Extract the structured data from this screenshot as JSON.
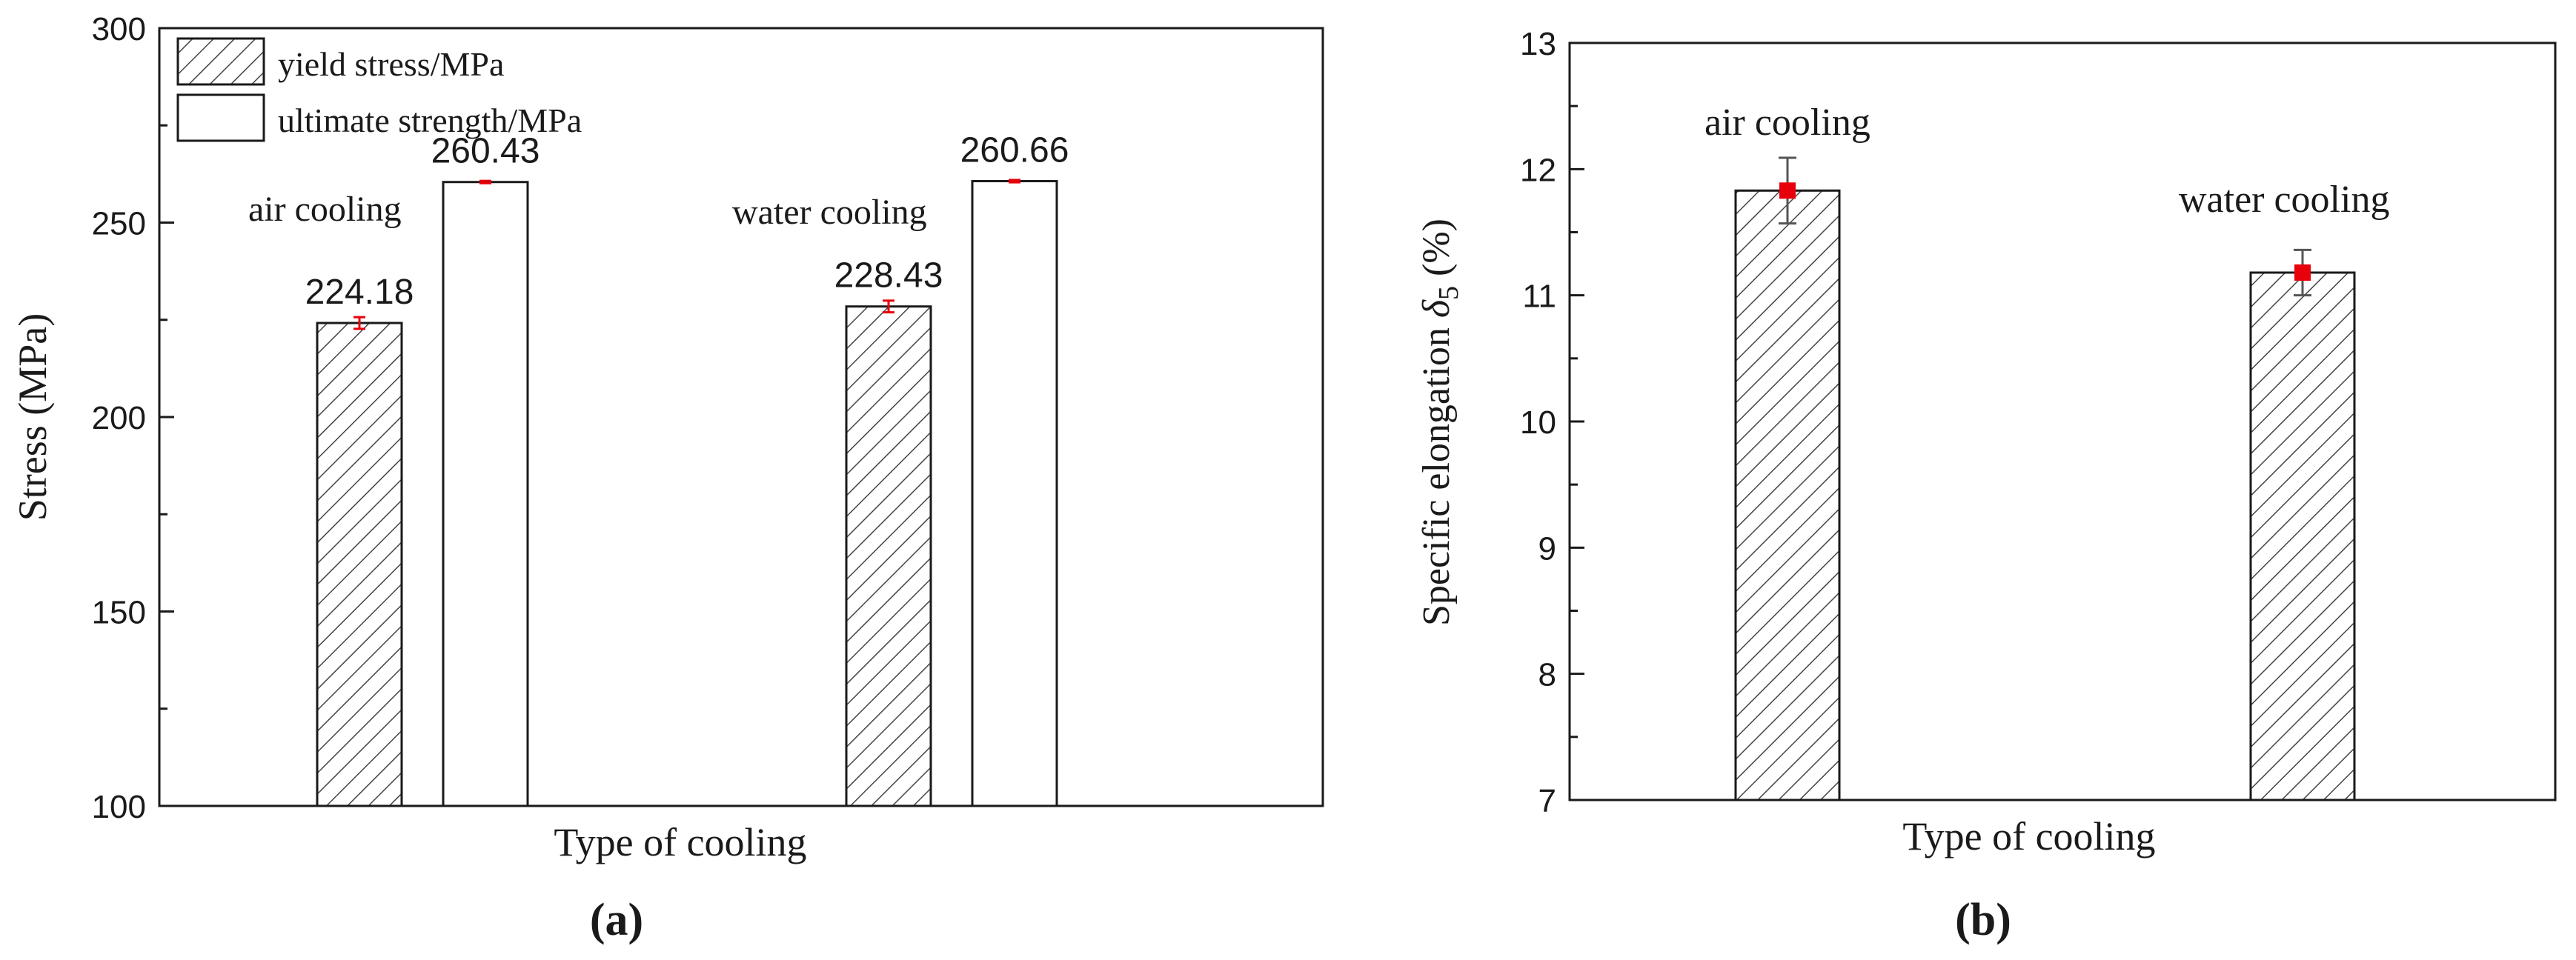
{
  "chart_data": [
    {
      "panel": "(a)",
      "type": "bar",
      "xlabel": "Type of cooling",
      "ylabel": "Stress (MPa)",
      "ylim": [
        100,
        300
      ],
      "yticks": [
        100,
        150,
        200,
        250,
        300
      ],
      "legend_position": "top-left",
      "categories": [
        "air cooling",
        "water cooling"
      ],
      "series": [
        {
          "name": "yield stress/MPa",
          "pattern": "hatched",
          "values": [
            224.18,
            228.43
          ],
          "errors": [
            1.5,
            1.5
          ],
          "labels": [
            "224.18",
            "228.43"
          ]
        },
        {
          "name": "ultimate strength/MPa",
          "pattern": "plain",
          "values": [
            260.43,
            260.66
          ],
          "errors": [
            0.3,
            0.3
          ],
          "labels": [
            "260.43",
            "260.66"
          ]
        }
      ],
      "grid": false
    },
    {
      "panel": "(b)",
      "type": "bar",
      "xlabel": "Type of cooling",
      "ylabel": "Specific elongation δ5 (%)",
      "ylabel_main": "Specific elongation ",
      "ylabel_symbol": "δ",
      "ylabel_sub": "5",
      "ylabel_unit": " (%)",
      "ylim": [
        7,
        13
      ],
      "yticks": [
        7,
        8,
        9,
        10,
        11,
        12,
        13
      ],
      "categories": [
        "air cooling",
        "water cooling"
      ],
      "series": [
        {
          "pattern": "hatched",
          "values": [
            11.83,
            11.18
          ],
          "errors": [
            0.26,
            0.18
          ]
        }
      ],
      "grid": false
    }
  ],
  "colors": {
    "error_bar": "#e8000b",
    "axis": "#1a1a1a",
    "hatch": "#444444"
  },
  "captions": [
    "(a)",
    "(b)"
  ]
}
